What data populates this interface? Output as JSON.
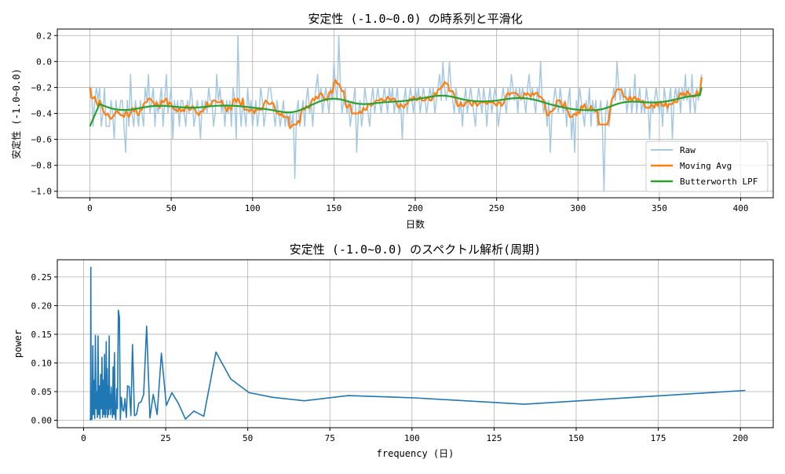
{
  "chart_data": [
    {
      "type": "line",
      "title": "安定性 (-1.0~0.0) の時系列と平滑化",
      "xlabel": "日数",
      "ylabel": "安定性 (-1.0~0.0)",
      "xlim": [
        -20,
        420
      ],
      "ylim": [
        -1.05,
        0.25
      ],
      "xticks": [
        0,
        50,
        100,
        150,
        200,
        250,
        300,
        350,
        400
      ],
      "yticks": [
        0.2,
        0.0,
        -0.2,
        -0.4,
        -0.6,
        -0.8,
        -1.0
      ],
      "ytick_labels": [
        "0.2",
        "0.0",
        "−0.2",
        "−0.4",
        "−0.6",
        "−0.8",
        "−1.0"
      ],
      "grid": true,
      "legend_position": "lower-right",
      "series": [
        {
          "name": "Raw",
          "color": "#a6c8e0",
          "values": [
            -0.2,
            -0.2,
            -0.5,
            -0.3,
            -0.2,
            -0.3,
            -0.2,
            -0.5,
            -0.4,
            -0.2,
            -0.5,
            -0.5,
            -0.5,
            -0.3,
            -0.4,
            -0.6,
            -0.3,
            -0.4,
            -0.4,
            -0.3,
            -0.3,
            -0.5,
            -0.7,
            -0.3,
            -0.5,
            -0.1,
            -0.4,
            -0.5,
            -0.3,
            -0.4,
            -0.5,
            -0.3,
            -0.4,
            -0.5,
            -0.2,
            -0.3,
            -0.1,
            -0.4,
            -0.3,
            -0.2,
            -0.5,
            -0.3,
            -0.4,
            -0.3,
            -0.2,
            -0.5,
            -0.3,
            -0.1,
            -0.4,
            -0.3,
            -0.2,
            -0.6,
            -0.3,
            -0.4,
            -0.3,
            -0.5,
            -0.3,
            -0.3,
            -0.4,
            -0.5,
            -0.3,
            -0.4,
            -0.2,
            -0.3,
            -0.5,
            -0.4,
            -0.3,
            -0.4,
            -0.6,
            -0.3,
            -0.4,
            -0.3,
            -0.4,
            -0.2,
            -0.3,
            -0.3,
            -0.5,
            -0.4,
            -0.1,
            -0.3,
            -0.2,
            -0.4,
            -0.3,
            -0.5,
            -0.3,
            -0.4,
            -0.3,
            -0.5,
            -0.2,
            -0.3,
            -0.6,
            0.2,
            -0.3,
            -0.5,
            -0.3,
            -0.4,
            -0.5,
            -0.2,
            -0.4,
            -0.3,
            -0.5,
            -0.4,
            -0.3,
            -0.5,
            -0.4,
            -0.2,
            -0.3,
            -0.5,
            -0.4,
            -0.3,
            -0.2,
            -0.2,
            -0.3,
            -0.4,
            -0.5,
            -0.3,
            -0.4,
            -0.5,
            -0.4,
            -0.3,
            -0.5,
            -0.4,
            -0.5,
            -0.4,
            -0.5,
            -0.4,
            -0.9,
            -0.4,
            -0.3,
            -0.5,
            -0.4,
            -0.3,
            -0.5,
            -0.3,
            -0.2,
            -0.4,
            -0.3,
            -0.5,
            -0.3,
            -0.2,
            -0.1,
            -0.3,
            -0.2,
            -0.4,
            -0.3,
            -0.2,
            -0.3,
            -0.4,
            -0.2,
            -0.3,
            0.0,
            -0.2,
            -0.3,
            0.2,
            -0.2,
            -0.4,
            -0.3,
            -0.2,
            -0.4,
            -0.3,
            -0.5,
            -0.4,
            -0.3,
            -0.2,
            -0.7,
            -0.4,
            -0.3,
            -0.5,
            -0.4,
            -0.2,
            -0.3,
            -0.4,
            -0.5,
            -0.3,
            -0.2,
            -0.4,
            -0.3,
            -0.2,
            -0.3,
            -0.4,
            -0.3,
            -0.2,
            -0.3,
            -0.4,
            -0.2,
            -0.3,
            -0.2,
            -0.4,
            -0.3,
            -0.2,
            -0.4,
            -0.3,
            -0.6,
            -0.3,
            -0.2,
            -0.4,
            -0.3,
            -0.2,
            -0.3,
            -0.4,
            -0.2,
            -0.3,
            -0.2,
            -0.4,
            -0.3,
            -0.2,
            -0.3,
            -0.4,
            -0.3,
            -0.2,
            -0.3,
            -0.2,
            -0.4,
            -0.3,
            -0.2,
            -0.1,
            -0.3,
            0.0,
            -0.2,
            -0.3,
            -0.2,
            0.0,
            -0.2,
            -0.3,
            -0.4,
            -0.2,
            -0.3,
            -0.4,
            -0.3,
            -0.5,
            -0.3,
            -0.2,
            -0.4,
            -0.3,
            -0.2,
            -0.3,
            -0.4,
            -0.5,
            -0.3,
            -0.2,
            -0.3,
            -0.4,
            -0.2,
            -0.3,
            -0.5,
            -0.3,
            -0.2,
            -0.4,
            -0.3,
            -0.2,
            -0.3,
            -0.5,
            -0.4,
            -0.3,
            -0.2,
            -0.3,
            -0.4,
            -0.2,
            -0.3,
            -0.1,
            -0.2,
            -0.3,
            -0.2,
            -0.4,
            -0.2,
            -0.3,
            -0.2,
            -0.3,
            -0.4,
            -0.2,
            -0.1,
            -0.3,
            -0.2,
            -0.3,
            -0.4,
            -0.2,
            -0.3,
            0.0,
            -0.3,
            -0.4,
            -0.3,
            -0.5,
            -0.3,
            -0.7,
            -0.4,
            -0.3,
            -0.2,
            -0.3,
            -0.4,
            -0.2,
            -0.3,
            -0.4,
            -0.3,
            -0.5,
            -0.3,
            -0.2,
            -0.6,
            -0.4,
            -0.7,
            -0.3,
            -0.4,
            -0.2,
            -0.3,
            -0.4,
            -0.5,
            -0.3,
            -0.4,
            -0.2,
            -0.5,
            -0.3,
            -0.4,
            -0.3,
            -0.5,
            -0.4,
            -0.3,
            -0.5,
            -1.0,
            -0.4,
            -0.3,
            -0.5,
            -0.4,
            -0.3,
            -0.2,
            -0.3,
            0.0,
            -0.2,
            -0.3,
            -0.2,
            -0.3,
            -0.2,
            -0.4,
            -0.3,
            -0.2,
            -0.4,
            -0.3,
            -0.1,
            -0.4,
            -0.3,
            -0.2,
            -0.4,
            -0.3,
            -0.4,
            -0.2,
            -0.3,
            -0.6,
            -0.3,
            -0.4,
            -0.3,
            -0.2,
            -0.3,
            -0.4,
            -0.3,
            -0.5,
            -0.2,
            -0.3,
            -0.4,
            -0.3,
            -0.2,
            -0.6,
            -0.3,
            -0.2,
            -0.3,
            -0.2,
            -0.4,
            -0.2,
            -0.3,
            -0.1,
            -0.3,
            -0.2,
            -0.4,
            -0.1,
            -0.3,
            -0.4,
            -0.2,
            -0.3,
            -0.2,
            -0.1
          ]
        },
        {
          "name": "Moving Avg",
          "color": "#ff7f0e"
        },
        {
          "name": "Butterworth LPF",
          "color": "#2ca02c"
        }
      ]
    },
    {
      "type": "line",
      "title": "安定性 (-1.0~0.0) のスペクトル解析(周期)",
      "xlabel": "frequency (日)",
      "ylabel": "power",
      "xlim": [
        -8,
        210
      ],
      "ylim": [
        -0.013,
        0.28
      ],
      "xticks": [
        0,
        25,
        50,
        75,
        100,
        125,
        150,
        175,
        200
      ],
      "yticks": [
        0,
        0.05,
        0.1,
        0.15,
        0.2,
        0.25
      ],
      "ytick_labels": [
        "0.00",
        "0.05",
        "0.10",
        "0.15",
        "0.20",
        "0.25"
      ],
      "grid": true,
      "color": "#1f77b4",
      "x": [
        201.5,
        134.3,
        100.8,
        80.6,
        67.2,
        57.6,
        50.4,
        44.8,
        40.3,
        36.6,
        33.6,
        31.0,
        28.8,
        26.9,
        25.2,
        23.7,
        22.4,
        21.2,
        20.2,
        19.2,
        18.3,
        17.5,
        16.8,
        16.1,
        15.5,
        14.9,
        14.4,
        13.9,
        13.4,
        13.0,
        12.6,
        12.2,
        11.9,
        11.5,
        11.2,
        10.9,
        10.6,
        10.3,
        10.1,
        9.8,
        9.6,
        9.4,
        9.2,
        9.0,
        8.8,
        8.6,
        8.4,
        8.2,
        8.1,
        7.9,
        7.8,
        7.6,
        7.5,
        7.3,
        7.2,
        7.1,
        6.9,
        6.8,
        6.7,
        6.6,
        6.4,
        6.2,
        6.0,
        5.8,
        5.6,
        5.4,
        5.2,
        5.0,
        4.8,
        4.6,
        4.4,
        4.2,
        4.0,
        3.8,
        3.6,
        3.4,
        3.2,
        3.0,
        2.8,
        2.6,
        2.4,
        2.3,
        2.2,
        2.1,
        2.0
      ],
      "y": [
        0.052,
        0.028,
        0.039,
        0.043,
        0.034,
        0.04,
        0.048,
        0.072,
        0.119,
        0.007,
        0.016,
        0.002,
        0.03,
        0.048,
        0.026,
        0.117,
        0.01,
        0.045,
        0.004,
        0.164,
        0.045,
        0.032,
        0.03,
        0.01,
        0.008,
        0.132,
        0.008,
        0.058,
        0.06,
        0.005,
        0.038,
        0.016,
        0.018,
        0.04,
        0.001,
        0.18,
        0.192,
        0.02,
        0.055,
        0.001,
        0.01,
        0.118,
        0.01,
        0.093,
        0.005,
        0.03,
        0.058,
        0.01,
        0.045,
        0.02,
        0.147,
        0.01,
        0.06,
        0.005,
        0.09,
        0.02,
        0.137,
        0.01,
        0.05,
        0.005,
        0.115,
        0.01,
        0.07,
        0.005,
        0.11,
        0.02,
        0.08,
        0.003,
        0.06,
        0.01,
        0.147,
        0.005,
        0.05,
        0.02,
        0.148,
        0.003,
        0.07,
        0.01,
        0.13,
        0.002,
        0.05,
        0.001,
        0.267,
        0.004,
        0.0
      ]
    }
  ]
}
